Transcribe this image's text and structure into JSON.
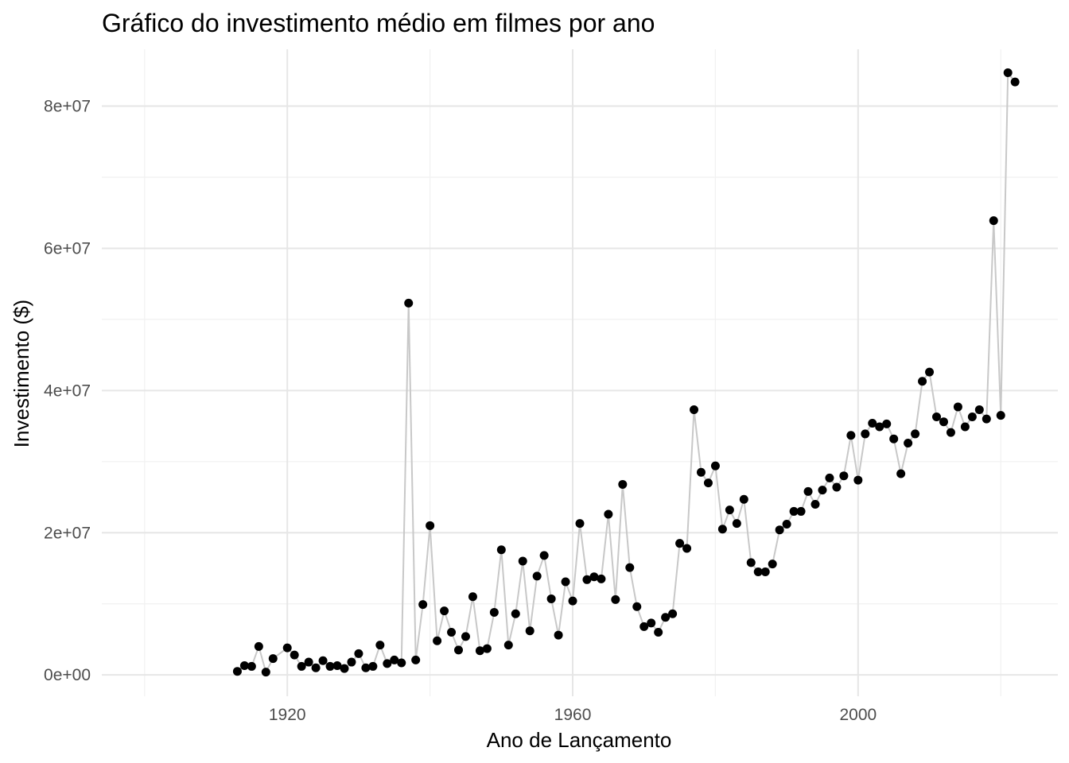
{
  "chart_data": {
    "type": "line",
    "title": "Gráfico do investimento médio em filmes por ano",
    "xlabel": "Ano de Lançamento",
    "ylabel": "Investimento ($)",
    "xlim": [
      1894,
      2028
    ],
    "ylim": [
      -3000000,
      88000000
    ],
    "x_ticks": [
      {
        "value": 1920,
        "label": "1920"
      },
      {
        "value": 1960,
        "label": "1960"
      },
      {
        "value": 2000,
        "label": "2000"
      }
    ],
    "x_minor_ticks": [
      1900,
      1940,
      1980,
      2020
    ],
    "y_ticks": [
      {
        "value": 0,
        "label": "0e+00"
      },
      {
        "value": 20000000,
        "label": "2e+07"
      },
      {
        "value": 40000000,
        "label": "4e+07"
      },
      {
        "value": 60000000,
        "label": "6e+07"
      },
      {
        "value": 80000000,
        "label": "8e+07"
      }
    ],
    "y_minor_ticks": [
      10000000,
      30000000,
      50000000,
      70000000
    ],
    "grid": true,
    "legend": "none",
    "line_color": "#c8c8c8",
    "point_color": "#000000",
    "grid_color": "#e6e6e6",
    "series": [
      {
        "x": [
          1913,
          1914,
          1915,
          1916,
          1917,
          1918,
          1920,
          1921,
          1922,
          1923,
          1924,
          1925,
          1926,
          1927,
          1928,
          1929,
          1930,
          1931,
          1932,
          1933,
          1934,
          1935,
          1936,
          1937,
          1938,
          1939,
          1940,
          1941,
          1942,
          1943,
          1944,
          1945,
          1946,
          1947,
          1948,
          1949,
          1950,
          1951,
          1952,
          1953,
          1954,
          1955,
          1956,
          1957,
          1958,
          1959,
          1960,
          1961,
          1962,
          1963,
          1964,
          1965,
          1966,
          1967,
          1968,
          1969,
          1970,
          1971,
          1972,
          1973,
          1974,
          1975,
          1976,
          1977,
          1978,
          1979,
          1980,
          1981,
          1982,
          1983,
          1984,
          1985,
          1986,
          1987,
          1988,
          1989,
          1990,
          1991,
          1992,
          1993,
          1994,
          1995,
          1996,
          1997,
          1998,
          1999,
          2000,
          2001,
          2002,
          2003,
          2004,
          2005,
          2006,
          2007,
          2008,
          2009,
          2010,
          2011,
          2012,
          2013,
          2014,
          2015,
          2016,
          2017,
          2018,
          2019,
          2020,
          2021,
          2022
        ],
        "y": [
          500000,
          1300000,
          1200000,
          4000000,
          400000,
          2300000,
          3800000,
          2800000,
          1200000,
          1800000,
          1000000,
          2000000,
          1200000,
          1300000,
          900000,
          1800000,
          3000000,
          1000000,
          1200000,
          4200000,
          1600000,
          2100000,
          1700000,
          52300000,
          2100000,
          9900000,
          21000000,
          4800000,
          9000000,
          6000000,
          3500000,
          5400000,
          11000000,
          3400000,
          3700000,
          8800000,
          17600000,
          4200000,
          8600000,
          16000000,
          6200000,
          13900000,
          16800000,
          10700000,
          5600000,
          13100000,
          10400000,
          21300000,
          13400000,
          13800000,
          13500000,
          22600000,
          10600000,
          26800000,
          15100000,
          9600000,
          6800000,
          7300000,
          6000000,
          8100000,
          8600000,
          18500000,
          17800000,
          37300000,
          28500000,
          27000000,
          29400000,
          20500000,
          23200000,
          21300000,
          24700000,
          15800000,
          14500000,
          14500000,
          15600000,
          20400000,
          21200000,
          23000000,
          23000000,
          25800000,
          24000000,
          26000000,
          27700000,
          26400000,
          28000000,
          33700000,
          27400000,
          33900000,
          35400000,
          34900000,
          35300000,
          33200000,
          28300000,
          32600000,
          33900000,
          41300000,
          42600000,
          36300000,
          35600000,
          34100000,
          37700000,
          34900000,
          36300000,
          37300000,
          36000000,
          63900000,
          36500000,
          84700000,
          83400000
        ]
      }
    ]
  }
}
